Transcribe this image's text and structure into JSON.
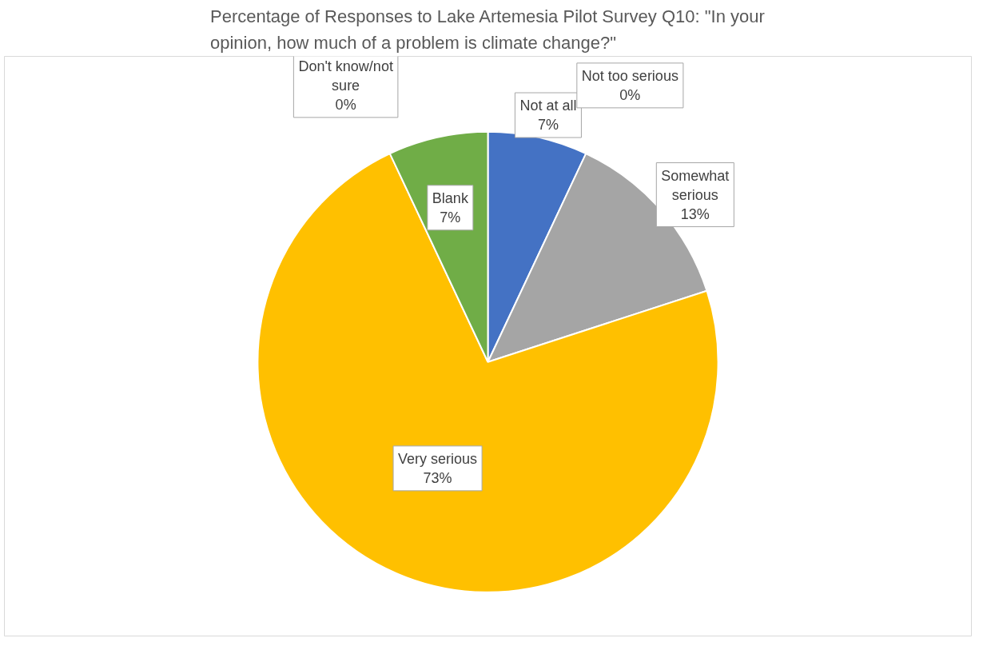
{
  "chart_data": {
    "type": "pie",
    "title": "Percentage of Responses to Lake Artemesia Pilot Survey Q10: \"In your opinion, how much of a problem is climate change?\"",
    "categories": [
      "Not at all",
      "Not too serious",
      "Somewhat serious",
      "Very serious",
      "Don't know/not sure",
      "Blank"
    ],
    "values": [
      7,
      0,
      13,
      73,
      0,
      7
    ],
    "colors": [
      "#4472c4",
      "#ed7d31",
      "#a5a5a5",
      "#ffc000",
      "#5b9bd5",
      "#70ad47"
    ],
    "value_labels": [
      "7%",
      "0%",
      "13%",
      "73%",
      "0%",
      "7%"
    ]
  }
}
